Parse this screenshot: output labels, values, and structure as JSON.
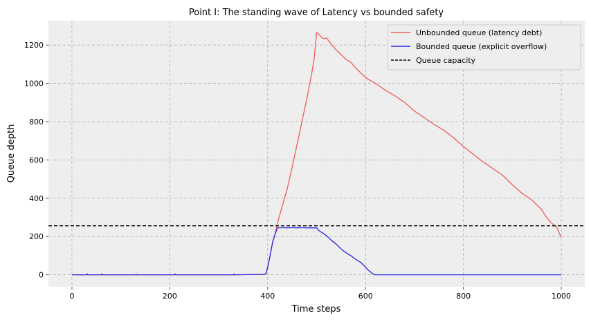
{
  "chart_data": {
    "type": "line",
    "title": "Point I: The standing wave of Latency vs bounded safety",
    "xlabel": "Time steps",
    "ylabel": "Queue depth",
    "xlim": [
      -48,
      1048
    ],
    "ylim": [
      -63,
      1327
    ],
    "xticks": [
      0,
      200,
      400,
      600,
      800,
      1000
    ],
    "yticks": [
      0,
      200,
      400,
      600,
      800,
      1000,
      1200
    ],
    "grid": true,
    "legend_position": "top-right",
    "colors": {
      "background": "#eeeeee",
      "unbounded": "#f05a5a",
      "bounded": "#2323e6",
      "capacity": "#000000",
      "grid": "#b0b0b0"
    },
    "series": [
      {
        "name": "Unbounded queue (latency debt)",
        "style": "solid",
        "x": [
          0,
          30,
          31,
          32,
          60,
          61,
          62,
          130,
          131,
          132,
          210,
          211,
          212,
          330,
          331,
          332,
          395,
          397,
          400,
          405,
          410,
          415,
          420,
          440,
          450,
          460,
          470,
          480,
          490,
          495,
          500,
          505,
          510,
          515,
          520,
          530,
          540,
          550,
          560,
          570,
          580,
          590,
          600,
          620,
          640,
          660,
          680,
          700,
          720,
          740,
          760,
          780,
          800,
          820,
          840,
          860,
          880,
          900,
          920,
          940,
          960,
          970,
          980,
          990,
          1000
        ],
        "values": [
          0,
          0,
          5,
          0,
          0,
          4,
          0,
          0,
          3,
          0,
          0,
          4,
          0,
          0,
          4,
          0,
          2,
          10,
          40,
          100,
          170,
          210,
          270,
          450,
          560,
          680,
          800,
          920,
          1050,
          1130,
          1265,
          1255,
          1240,
          1232,
          1238,
          1205,
          1175,
          1150,
          1125,
          1110,
          1080,
          1055,
          1030,
          1000,
          965,
          935,
          900,
          855,
          820,
          785,
          755,
          715,
          670,
          630,
          590,
          555,
          520,
          470,
          425,
          390,
          340,
          300,
          270,
          250,
          195
        ]
      },
      {
        "name": "Bounded queue (explicit overflow)",
        "style": "solid",
        "x": [
          0,
          30,
          31,
          32,
          60,
          61,
          62,
          130,
          131,
          132,
          210,
          211,
          212,
          330,
          331,
          332,
          395,
          397,
          400,
          405,
          410,
          415,
          420,
          430,
          440,
          450,
          460,
          470,
          480,
          490,
          500,
          505,
          510,
          520,
          530,
          540,
          550,
          560,
          570,
          580,
          590,
          600,
          605,
          610,
          615,
          620,
          700,
          800,
          900,
          1000
        ],
        "values": [
          0,
          0,
          5,
          0,
          0,
          4,
          0,
          0,
          3,
          0,
          0,
          4,
          0,
          0,
          4,
          0,
          2,
          10,
          40,
          100,
          170,
          210,
          245,
          246,
          245,
          246,
          245,
          246,
          245,
          245,
          245,
          230,
          222,
          205,
          180,
          160,
          135,
          115,
          100,
          80,
          65,
          40,
          25,
          15,
          5,
          0,
          0,
          0,
          0,
          0
        ]
      },
      {
        "name": "Queue capacity",
        "style": "dashed",
        "value": 256
      }
    ]
  }
}
